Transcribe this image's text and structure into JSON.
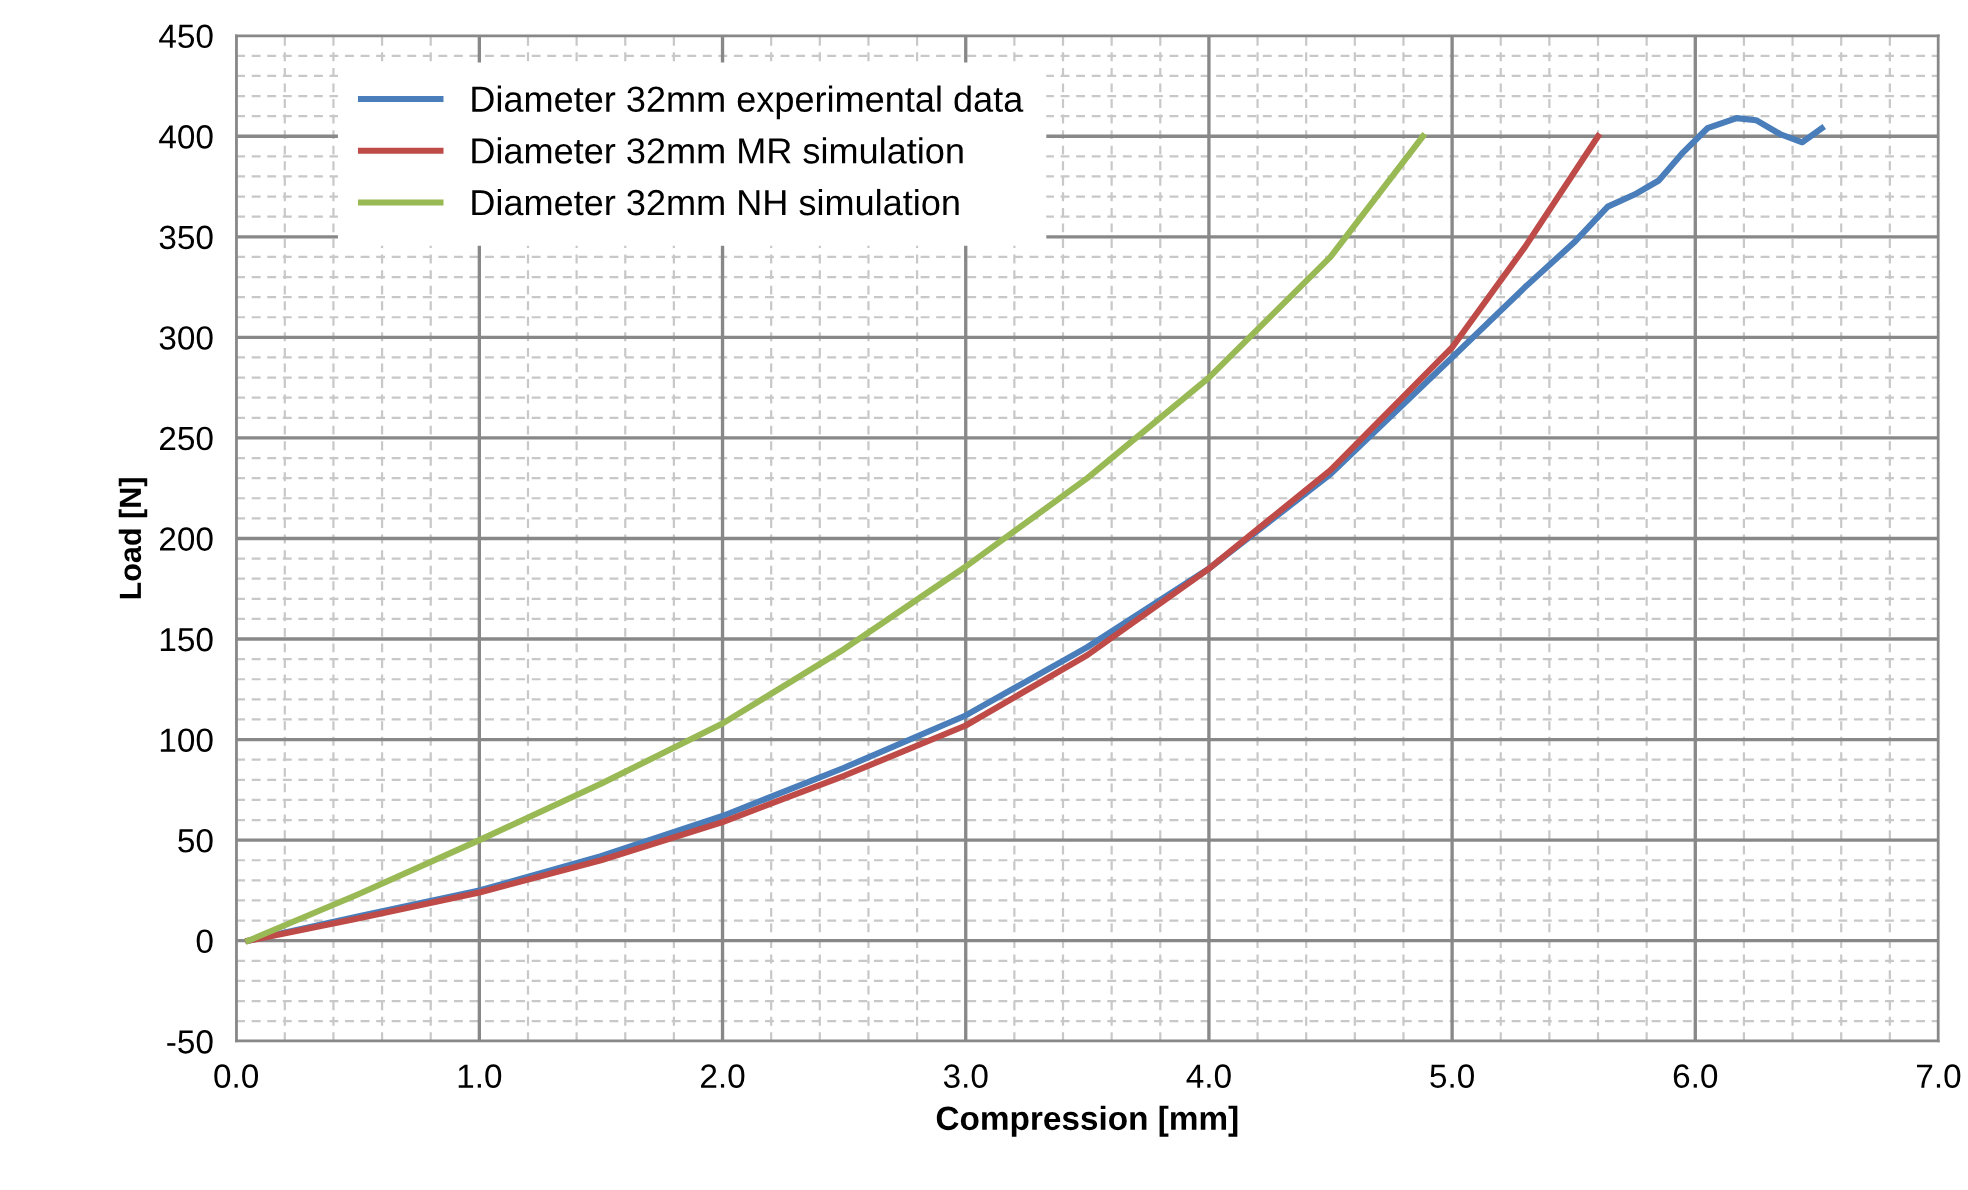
{
  "chart_data": {
    "type": "line",
    "xlabel": "Compression [mm]",
    "ylabel": "Load [N]",
    "xlim": [
      0,
      7
    ],
    "ylim": [
      -50,
      450
    ],
    "xticks": [
      {
        "value": 0,
        "label": "0.0"
      },
      {
        "value": 1,
        "label": "1.0"
      },
      {
        "value": 2,
        "label": "2.0"
      },
      {
        "value": 3,
        "label": "3.0"
      },
      {
        "value": 4,
        "label": "4.0"
      },
      {
        "value": 5,
        "label": "5.0"
      },
      {
        "value": 6,
        "label": "6.0"
      },
      {
        "value": 7,
        "label": "7.0"
      }
    ],
    "yticks": [
      -50,
      0,
      50,
      100,
      150,
      200,
      250,
      300,
      350,
      400,
      450
    ],
    "grid": true,
    "legend": "top left",
    "marker": "none",
    "line_style": "solid",
    "series": [
      {
        "name": "Diameter 32mm experimental data",
        "color": "#4a7ebb",
        "x": [
          0.05,
          0.5,
          1,
          1.5,
          2,
          2.5,
          3,
          3.5,
          4,
          4.5,
          5,
          5.3,
          5.5,
          5.64,
          5.75,
          5.85,
          5.95,
          6.05,
          6.17,
          6.25,
          6.35,
          6.44,
          6.52
        ],
        "values": [
          0,
          12,
          25,
          42,
          62,
          86,
          112,
          146,
          185,
          232,
          290,
          325,
          347,
          365,
          371,
          378,
          392,
          404,
          409,
          408,
          401,
          397,
          404
        ]
      },
      {
        "name": "Diameter 32mm MR simulation",
        "color": "#be4b48",
        "x": [
          0.05,
          0.5,
          1,
          1.5,
          2,
          2.5,
          3,
          3.5,
          4,
          4.5,
          5,
          5.3,
          5.6
        ],
        "values": [
          0,
          11,
          24,
          40,
          59,
          82,
          107,
          142,
          185,
          234,
          295,
          345,
          400
        ]
      },
      {
        "name": "Diameter 32mm NH simulation",
        "color": "#98b954",
        "x": [
          0.05,
          0.5,
          1,
          1.5,
          2,
          2.5,
          3,
          3.5,
          4,
          4.5,
          4.88
        ],
        "values": [
          0,
          23,
          50,
          78,
          108,
          145,
          186,
          230,
          280,
          340,
          400
        ]
      }
    ]
  }
}
